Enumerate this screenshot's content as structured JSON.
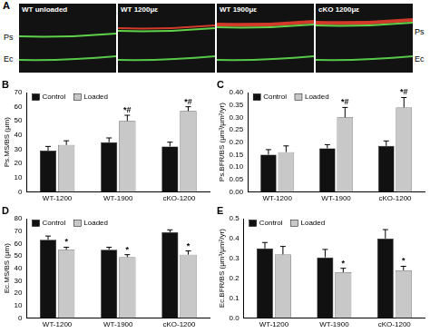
{
  "panel_a": {
    "panel_label": "A",
    "images": [
      "WT unloaded",
      "WT 1200με",
      "WT 1900με",
      "cKO 1200με"
    ],
    "left_labels": [
      "Ps",
      "Ec"
    ],
    "right_labels": [
      "Ps",
      "Ec"
    ]
  },
  "chart_data": [
    {
      "panel_label": "B",
      "type": "bar",
      "y_label": "Ps.MS/BS (μm)",
      "categories": [
        "WT-1200",
        "WT-1900",
        "cKO-1200"
      ],
      "series": [
        {
          "name": "Control",
          "color": "#111111",
          "values": [
            29,
            35,
            32
          ],
          "errors": [
            3,
            3,
            3
          ]
        },
        {
          "name": "Loaded",
          "color": "#c8c8c8",
          "values": [
            33,
            50,
            57
          ],
          "errors": [
            3,
            4,
            3
          ]
        }
      ],
      "annotations": [
        {
          "category": "WT-1900",
          "series": "Loaded",
          "text": "*#"
        },
        {
          "category": "cKO-1200",
          "series": "Loaded",
          "text": "*#"
        }
      ],
      "ylim": [
        0,
        70
      ],
      "yticks": [
        0,
        10,
        20,
        30,
        40,
        50,
        60,
        70
      ],
      "grid": false,
      "legend": "upper left"
    },
    {
      "panel_label": "C",
      "type": "bar",
      "y_label": "Ps.BFR/BS (μm³/μm²/yr)",
      "categories": [
        "WT-1200",
        "WT-1900",
        "cKO-1200"
      ],
      "series": [
        {
          "name": "Control",
          "color": "#111111",
          "values": [
            0.15,
            0.175,
            0.185
          ],
          "errors": [
            0.02,
            0.015,
            0.02
          ]
        },
        {
          "name": "Loaded",
          "color": "#c8c8c8",
          "values": [
            0.16,
            0.3,
            0.34
          ],
          "errors": [
            0.025,
            0.04,
            0.04
          ]
        }
      ],
      "annotations": [
        {
          "category": "WT-1900",
          "series": "Loaded",
          "text": "*#"
        },
        {
          "category": "cKO-1200",
          "series": "Loaded",
          "text": "*#"
        }
      ],
      "ylim": [
        0,
        0.4
      ],
      "yticks": [
        {
          "value": 0,
          "label": "0.00"
        },
        0.05,
        {
          "value": 0.1,
          "label": "0.10"
        },
        0.15,
        {
          "value": 0.2,
          "label": "0.20"
        },
        0.25,
        {
          "value": 0.3,
          "label": "0.30"
        },
        0.35,
        {
          "value": 0.4,
          "label": "0.40"
        }
      ],
      "grid": false,
      "legend": "upper left"
    },
    {
      "panel_label": "D",
      "type": "bar",
      "y_label": "Ec.MS/BS (μm)",
      "categories": [
        "WT-1200",
        "WT-1900",
        "cKO-1200"
      ],
      "series": [
        {
          "name": "Control",
          "color": "#111111",
          "values": [
            63,
            55,
            69
          ],
          "errors": [
            3,
            2,
            2
          ]
        },
        {
          "name": "Loaded",
          "color": "#c8c8c8",
          "values": [
            55,
            49,
            51
          ],
          "errors": [
            2,
            2,
            3
          ]
        }
      ],
      "annotations": [
        {
          "category": "WT-1200",
          "series": "Loaded",
          "text": "*"
        },
        {
          "category": "WT-1900",
          "series": "Loaded",
          "text": "*"
        },
        {
          "category": "cKO-1200",
          "series": "Loaded",
          "text": "*"
        }
      ],
      "ylim": [
        0,
        80
      ],
      "yticks": [
        0,
        10,
        20,
        30,
        40,
        50,
        60,
        70,
        80
      ],
      "grid": false,
      "legend": "upper left"
    },
    {
      "panel_label": "E",
      "type": "bar",
      "y_label": "Ec.BFR/BS (μm³/μm²/yr)",
      "categories": [
        "WT-1200",
        "WT-1900",
        "cKO-1200"
      ],
      "series": [
        {
          "name": "Control",
          "color": "#111111",
          "values": [
            0.35,
            0.305,
            0.4
          ],
          "errors": [
            0.03,
            0.04,
            0.045
          ]
        },
        {
          "name": "Loaded",
          "color": "#c8c8c8",
          "values": [
            0.32,
            0.23,
            0.24
          ],
          "errors": [
            0.04,
            0.02,
            0.02
          ]
        }
      ],
      "annotations": [
        {
          "category": "WT-1900",
          "series": "Loaded",
          "text": "*"
        },
        {
          "category": "cKO-1200",
          "series": "Loaded",
          "text": "*"
        }
      ],
      "ylim": [
        0,
        0.5
      ],
      "yticks": [
        {
          "value": 0,
          "label": "0.0"
        },
        0.1,
        0.2,
        0.3,
        0.4,
        0.5
      ],
      "grid": false,
      "legend": "upper left"
    }
  ]
}
